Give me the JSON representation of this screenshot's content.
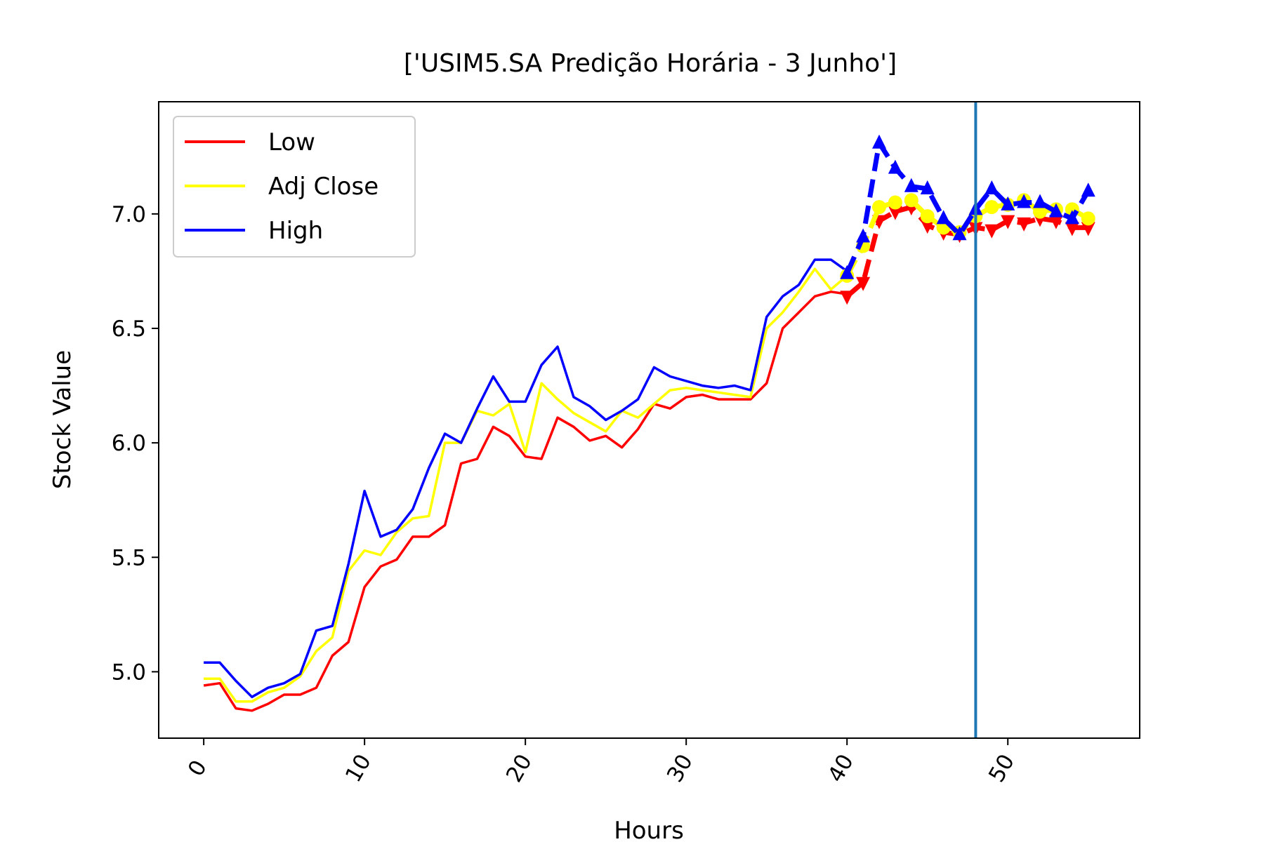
{
  "chart_data": {
    "type": "line",
    "title": "['USIM5.SA Predição Horária - 3 Junho']",
    "xlabel": "Hours",
    "ylabel": "Stock Value",
    "xlim": [
      -2.8,
      58.2
    ],
    "ylim": [
      4.71,
      7.49
    ],
    "xticks": [
      0,
      10,
      20,
      30,
      40,
      50
    ],
    "yticks": [
      5.0,
      5.5,
      6.0,
      6.5,
      7.0
    ],
    "ytick_labels": [
      "5.0",
      "5.5",
      "6.0",
      "6.5",
      "7.0"
    ],
    "vertical_line_x": 48,
    "legend_position": "upper left",
    "grid": false,
    "colors": {
      "low": "#ff0000",
      "adj_close": "#ffff00",
      "high": "#0000ff",
      "vline": "#1f77b4"
    },
    "series": [
      {
        "name": "Low",
        "color": "#ff0000",
        "x": [
          0,
          1,
          2,
          3,
          4,
          5,
          6,
          7,
          8,
          9,
          10,
          11,
          12,
          13,
          14,
          15,
          16,
          17,
          18,
          19,
          20,
          21,
          22,
          23,
          24,
          25,
          26,
          27,
          28,
          29,
          30,
          31,
          32,
          33,
          34,
          35,
          36,
          37,
          38,
          39,
          40
        ],
        "values": [
          4.94,
          4.95,
          4.84,
          4.83,
          4.86,
          4.9,
          4.9,
          4.93,
          5.07,
          5.13,
          5.37,
          5.46,
          5.49,
          5.59,
          5.59,
          5.64,
          5.91,
          5.93,
          6.07,
          6.03,
          5.94,
          5.93,
          6.11,
          6.07,
          6.01,
          6.03,
          5.98,
          6.06,
          6.17,
          6.15,
          6.2,
          6.21,
          6.19,
          6.19,
          6.19,
          6.26,
          6.5,
          6.57,
          6.64,
          6.66,
          6.65
        ]
      },
      {
        "name": "Adj Close",
        "color": "#ffff00",
        "x": [
          0,
          1,
          2,
          3,
          4,
          5,
          6,
          7,
          8,
          9,
          10,
          11,
          12,
          13,
          14,
          15,
          16,
          17,
          18,
          19,
          20,
          21,
          22,
          23,
          24,
          25,
          26,
          27,
          28,
          29,
          30,
          31,
          32,
          33,
          34,
          35,
          36,
          37,
          38,
          39,
          40
        ],
        "values": [
          4.97,
          4.97,
          4.87,
          4.87,
          4.91,
          4.93,
          4.98,
          5.09,
          5.15,
          5.44,
          5.53,
          5.51,
          5.61,
          5.67,
          5.68,
          6.0,
          6.0,
          6.14,
          6.12,
          6.17,
          5.96,
          6.26,
          6.19,
          6.13,
          6.09,
          6.05,
          6.14,
          6.11,
          6.17,
          6.23,
          6.24,
          6.23,
          6.22,
          6.21,
          6.2,
          6.5,
          6.57,
          6.66,
          6.76,
          6.67,
          6.73
        ]
      },
      {
        "name": "High",
        "color": "#0000ff",
        "x": [
          0,
          1,
          2,
          3,
          4,
          5,
          6,
          7,
          8,
          9,
          10,
          11,
          12,
          13,
          14,
          15,
          16,
          17,
          18,
          19,
          20,
          21,
          22,
          23,
          24,
          25,
          26,
          27,
          28,
          29,
          30,
          31,
          32,
          33,
          34,
          35,
          36,
          37,
          38,
          39,
          40
        ],
        "values": [
          5.04,
          5.04,
          4.96,
          4.89,
          4.93,
          4.95,
          4.99,
          5.18,
          5.2,
          5.47,
          5.79,
          5.59,
          5.62,
          5.71,
          5.89,
          6.04,
          6.0,
          6.15,
          6.29,
          6.18,
          6.18,
          6.34,
          6.42,
          6.2,
          6.16,
          6.1,
          6.14,
          6.19,
          6.33,
          6.29,
          6.27,
          6.25,
          6.24,
          6.25,
          6.23,
          6.55,
          6.64,
          6.69,
          6.8,
          6.8,
          6.75
        ]
      }
    ],
    "prediction_series": [
      {
        "name": "Low",
        "color": "#ff0000",
        "marker": "triangle-down",
        "x": [
          40,
          41,
          42,
          43,
          44,
          45,
          46,
          47,
          48,
          49,
          50,
          51,
          52,
          53,
          54,
          55
        ],
        "values": [
          6.64,
          6.7,
          6.97,
          7.01,
          7.03,
          6.95,
          6.92,
          6.91,
          6.94,
          6.93,
          6.97,
          6.96,
          6.98,
          6.97,
          6.94,
          6.94
        ]
      },
      {
        "name": "Adj Close",
        "color": "#ffff00",
        "marker": "circle",
        "x": [
          40,
          41,
          42,
          43,
          44,
          45,
          46,
          47,
          48,
          49,
          50,
          51,
          52,
          53,
          54,
          55
        ],
        "values": [
          6.73,
          6.86,
          7.03,
          7.05,
          7.06,
          6.99,
          6.94,
          6.92,
          6.99,
          7.03,
          7.04,
          7.06,
          7.01,
          7.02,
          7.02,
          6.98
        ]
      },
      {
        "name": "High",
        "color": "#0000ff",
        "marker": "triangle-up",
        "x": [
          40,
          41,
          42,
          43,
          44,
          45,
          46,
          47,
          48,
          49,
          50,
          51,
          52,
          53,
          54,
          55
        ],
        "values": [
          6.74,
          6.9,
          7.31,
          7.2,
          7.12,
          7.11,
          6.98,
          6.91,
          7.02,
          7.11,
          7.04,
          7.05,
          7.05,
          7.01,
          6.98,
          7.1
        ]
      }
    ]
  }
}
